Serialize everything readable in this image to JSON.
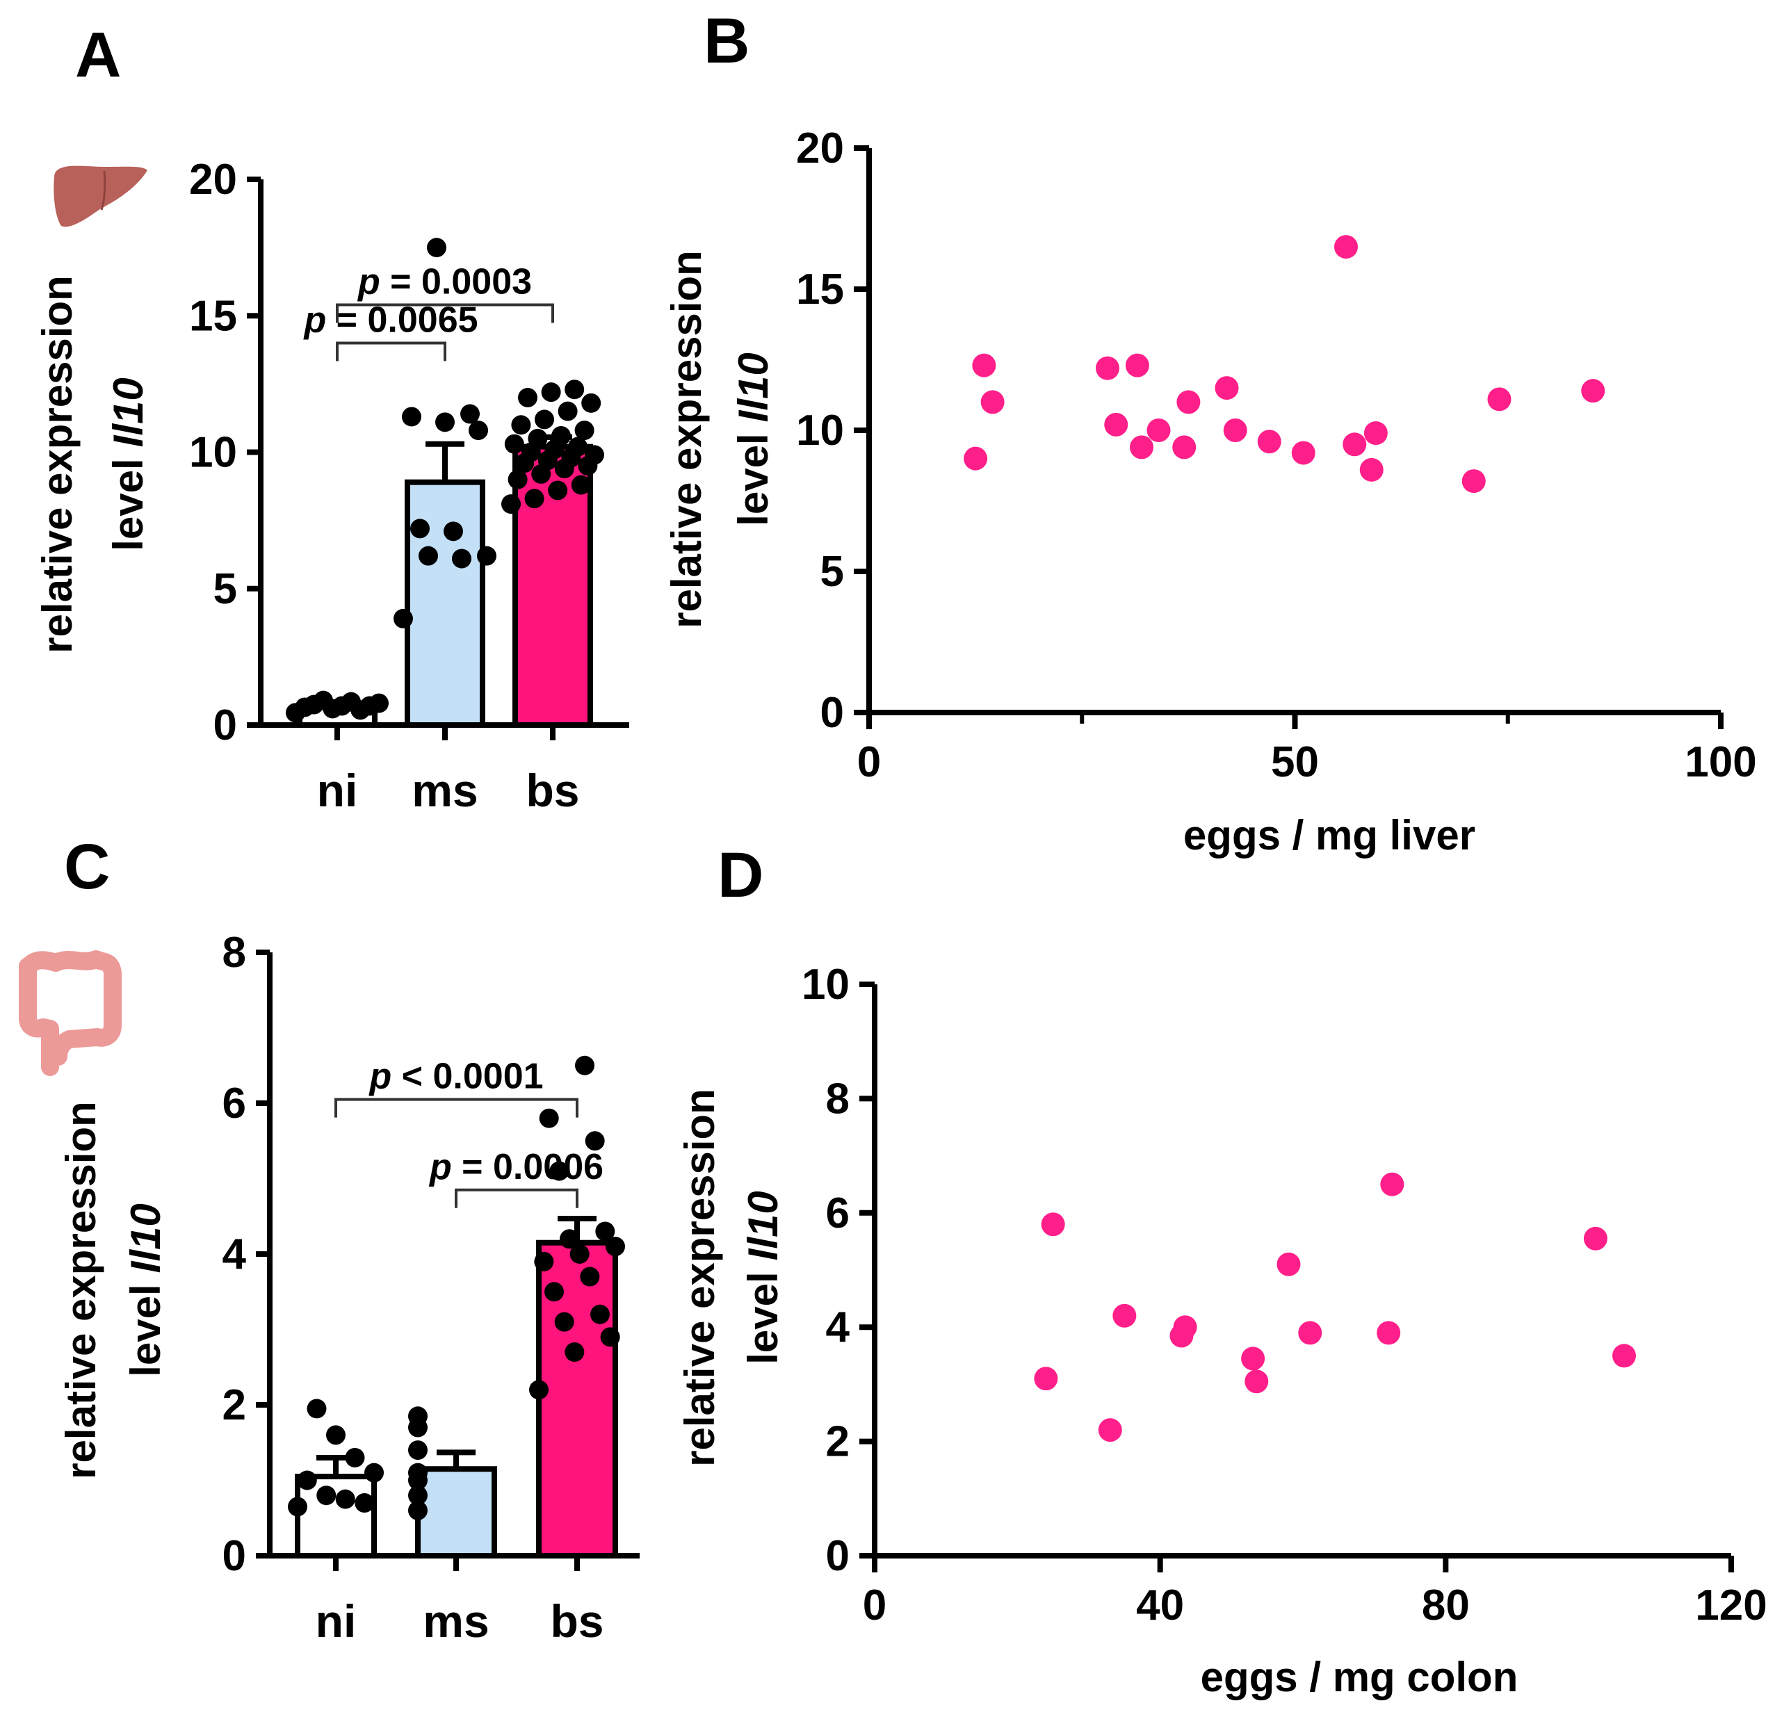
{
  "colors": {
    "ni": "#ffffff",
    "ms": "#c3e0f7",
    "bs": "#ff147d",
    "scatter": "#ff1f8a",
    "axis": "#000000",
    "liver_icon": "#b8605a",
    "colon_icon": "#ec9a98"
  },
  "icons": {
    "panel_a": "liver-icon",
    "panel_c": "colon-icon"
  },
  "chart_data": [
    {
      "id": "A",
      "panel_label": "A",
      "type": "bar",
      "categories": [
        "ni",
        "ms",
        "bs"
      ],
      "values": [
        0.7,
        8.9,
        10.2
      ],
      "sem": [
        0.1,
        1.4,
        0.35
      ],
      "points": [
        [
          0.45,
          0.55,
          0.6,
          0.65,
          0.7,
          0.7,
          0.75,
          0.8,
          0.85,
          0.9
        ],
        [
          3.9,
          6.1,
          6.2,
          6.2,
          7.1,
          7.2,
          10.8,
          11.1,
          11.3,
          11.4,
          17.5
        ],
        [
          8.1,
          8.3,
          8.6,
          8.8,
          9.0,
          9.2,
          9.4,
          9.5,
          9.6,
          9.7,
          9.8,
          9.9,
          10.0,
          10.1,
          10.2,
          10.3,
          10.5,
          10.6,
          10.8,
          11.0,
          11.2,
          11.5,
          11.8,
          12.0,
          12.2,
          12.3
        ]
      ],
      "ylabel": "relative expression",
      "ylabel_line2": "level",
      "ylabel_gene": "Il10",
      "ylim": [
        0,
        20
      ],
      "yticks": [
        0,
        5,
        10,
        15,
        20
      ],
      "comparisons": [
        {
          "from": 0,
          "to": 1,
          "label": "p = 0.0065",
          "p_symbol": "p",
          "p_text": " = 0.0065",
          "level": 14.0
        },
        {
          "from": 0,
          "to": 2,
          "label": "p = 0.0003",
          "p_symbol": "p",
          "p_text": " = 0.0003",
          "level": 15.4
        }
      ]
    },
    {
      "id": "B",
      "panel_label": "B",
      "type": "scatter",
      "x": [
        12.5,
        13.5,
        14.5,
        28,
        29,
        31.5,
        32,
        34,
        37,
        37.5,
        42,
        43,
        47,
        51,
        56,
        57,
        59,
        59.5,
        71,
        74,
        85
      ],
      "y": [
        9.0,
        12.3,
        11.0,
        12.2,
        10.2,
        12.3,
        9.4,
        10.0,
        9.4,
        11.0,
        11.5,
        10.0,
        9.6,
        9.2,
        16.5,
        9.5,
        8.6,
        9.9,
        8.2,
        11.1,
        11.4
      ],
      "xlabel": "eggs / mg liver",
      "ylabel": "relative expression",
      "ylabel_line2": "level",
      "ylabel_gene": "Il10",
      "xlim": [
        0,
        100
      ],
      "ylim": [
        0,
        20
      ],
      "xticks": [
        0,
        50,
        100
      ],
      "xminor": [
        25,
        75
      ],
      "yticks": [
        0,
        5,
        10,
        15,
        20
      ]
    },
    {
      "id": "C",
      "panel_label": "C",
      "type": "bar",
      "categories": [
        "ni",
        "ms",
        "bs"
      ],
      "values": [
        1.05,
        1.15,
        4.15
      ],
      "sem": [
        0.25,
        0.22,
        0.32
      ],
      "points": [
        [
          0.65,
          0.7,
          0.75,
          0.8,
          1.0,
          1.1,
          1.3,
          1.6,
          1.95
        ],
        [
          0.6,
          0.8,
          1.0,
          1.1,
          1.4,
          1.7,
          1.85
        ],
        [
          2.2,
          2.7,
          2.9,
          3.1,
          3.2,
          3.5,
          3.7,
          3.9,
          4.0,
          4.1,
          4.2,
          4.3,
          5.1,
          5.5,
          5.8,
          6.5
        ]
      ],
      "ylabel": "relative expression",
      "ylabel_line2": "level",
      "ylabel_gene": "Il10",
      "ylim": [
        0,
        8
      ],
      "yticks": [
        0,
        2,
        4,
        6,
        8
      ],
      "comparisons": [
        {
          "from": 1,
          "to": 2,
          "label": "p = 0.0006",
          "p_symbol": "p",
          "p_text": " = 0.0006",
          "level": 4.85
        },
        {
          "from": 0,
          "to": 2,
          "label": "p < 0.0001",
          "p_symbol": "p",
          "p_text": " < 0.0001",
          "level": 6.05
        }
      ]
    },
    {
      "id": "D",
      "panel_label": "D",
      "type": "scatter",
      "x": [
        24,
        25,
        33,
        35,
        43,
        43.5,
        53,
        53.5,
        58,
        61,
        72,
        72.5,
        101,
        105
      ],
      "y": [
        3.1,
        5.8,
        2.2,
        4.2,
        3.85,
        4.0,
        3.45,
        3.05,
        5.1,
        3.9,
        3.9,
        6.5,
        5.55,
        3.5
      ],
      "xlabel": "eggs / mg colon",
      "ylabel": "relative expression",
      "ylabel_line2": "level",
      "ylabel_gene": "Il10",
      "xlim": [
        0,
        120
      ],
      "ylim": [
        0,
        10
      ],
      "xticks": [
        0,
        40,
        80,
        120
      ],
      "yticks": [
        0,
        2,
        4,
        6,
        8,
        10
      ]
    }
  ]
}
